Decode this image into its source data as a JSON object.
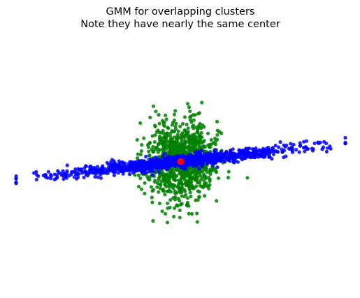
{
  "chart_data": {
    "type": "scatter",
    "title": "GMM for overlapping clusters",
    "subtitle": "Note they have nearly the same center",
    "xlabel": "",
    "ylabel": "",
    "axes_visible": false,
    "grid": false,
    "xlim": [
      -6,
      6
    ],
    "ylim": [
      -6,
      6
    ],
    "series": [
      {
        "color": "#008000",
        "count": 1000,
        "distribution": {
          "mean": [
            0.0,
            0.0
          ],
          "covariance": [
            [
              0.35,
              0.0
            ],
            [
              0.0,
              0.85
            ]
          ]
        }
      },
      {
        "color": "#0000ff",
        "count": 1000,
        "distribution": {
          "mean": [
            0.0,
            0.0
          ],
          "covariance": [
            [
              5.0,
              0.7
            ],
            [
              0.7,
              0.12
            ]
          ]
        }
      }
    ],
    "centers": [
      {
        "x": 0.0,
        "y": 0.0,
        "color": "#ff0000"
      }
    ]
  }
}
